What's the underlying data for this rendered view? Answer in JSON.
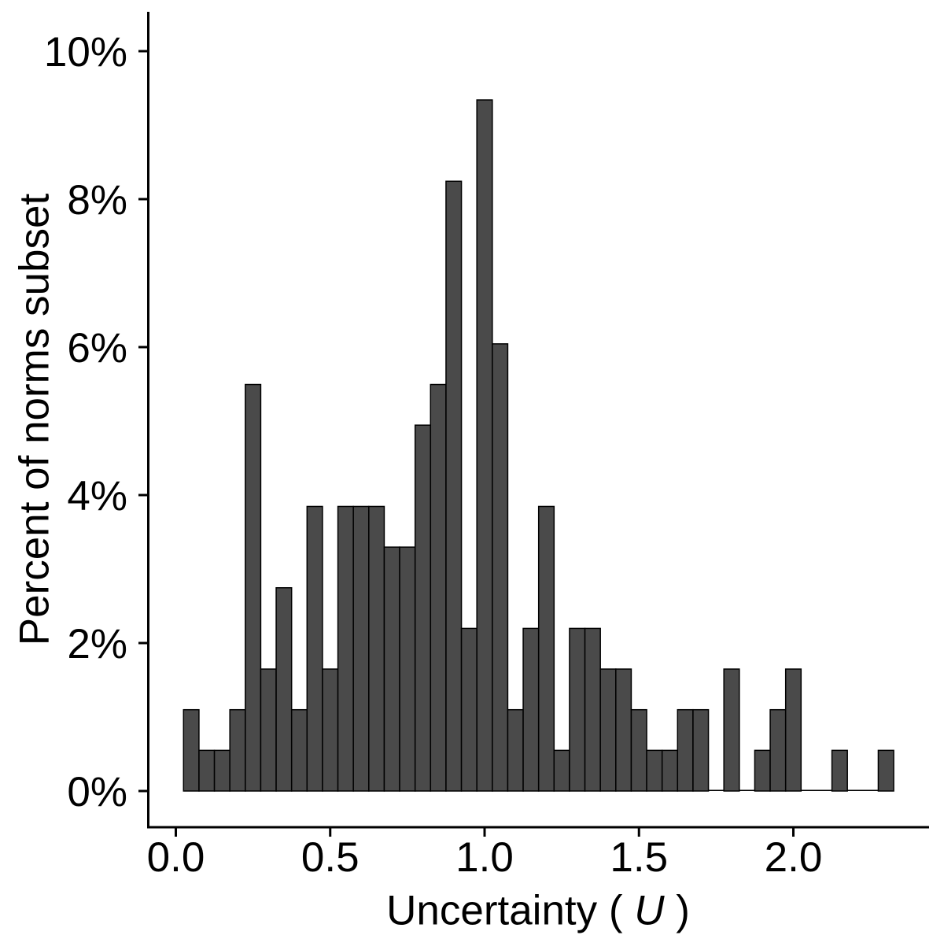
{
  "figure": {
    "background": "#ffffff",
    "x_axis_title": {
      "prefix": "Uncertainty ( ",
      "variable": "U",
      "suffix": " )"
    },
    "y_axis_title": "Percent of norms subset"
  },
  "chart_data": {
    "type": "bar",
    "subtype": "histogram",
    "title": "",
    "xlabel": "Uncertainty ( U )",
    "ylabel": "Percent of norms subset",
    "bin_width": 0.05,
    "bin_centers": [
      0.05,
      0.1,
      0.15,
      0.2,
      0.25,
      0.3,
      0.35,
      0.4,
      0.45,
      0.5,
      0.55,
      0.6,
      0.65,
      0.7,
      0.75,
      0.8,
      0.85,
      0.9,
      0.95,
      1.0,
      1.05,
      1.1,
      1.15,
      1.2,
      1.25,
      1.3,
      1.35,
      1.4,
      1.45,
      1.5,
      1.55,
      1.6,
      1.65,
      1.7,
      1.75,
      1.8,
      1.85,
      1.9,
      1.95,
      2.0,
      2.05,
      2.1,
      2.15,
      2.2,
      2.25,
      2.3
    ],
    "counts": [
      2,
      1,
      1,
      2,
      10,
      3,
      5,
      2,
      7,
      3,
      7,
      7,
      7,
      6,
      6,
      9,
      10,
      15,
      4,
      17,
      11,
      2,
      4,
      7,
      1,
      4,
      4,
      3,
      3,
      2,
      1,
      1,
      2,
      2,
      0,
      3,
      0,
      1,
      2,
      3,
      0,
      0,
      1,
      0,
      0,
      1
    ],
    "percents": [
      1.1,
      0.55,
      0.55,
      1.1,
      5.49,
      1.65,
      2.75,
      1.1,
      3.85,
      1.65,
      3.85,
      3.85,
      3.85,
      3.3,
      3.3,
      4.95,
      5.49,
      8.24,
      2.2,
      9.34,
      6.04,
      1.1,
      2.2,
      3.85,
      0.55,
      2.2,
      2.2,
      1.65,
      1.65,
      1.1,
      0.55,
      0.55,
      1.1,
      1.1,
      0,
      1.65,
      0,
      0.55,
      1.1,
      1.65,
      0,
      0,
      0.55,
      0,
      0,
      0.55
    ],
    "total_count": 182,
    "x_tick_values": [
      0,
      0.5,
      1,
      1.5,
      2
    ],
    "x_tick_labels": [
      "0.0",
      "0.5",
      "1.0",
      "1.5",
      "2.0"
    ],
    "y_tick_values": [
      0,
      2,
      4,
      6,
      8,
      10
    ],
    "y_tick_labels": [
      "0%",
      "2%",
      "4%",
      "6%",
      "8%",
      "10%"
    ],
    "xlim": [
      -0.09,
      2.44
    ],
    "ylim": [
      0,
      10.5
    ],
    "grid": false,
    "legend": "none",
    "bar_fill": "#4a4a4a",
    "bar_stroke": "#000000",
    "axis_color": "#000000",
    "text_color": "#000000"
  }
}
